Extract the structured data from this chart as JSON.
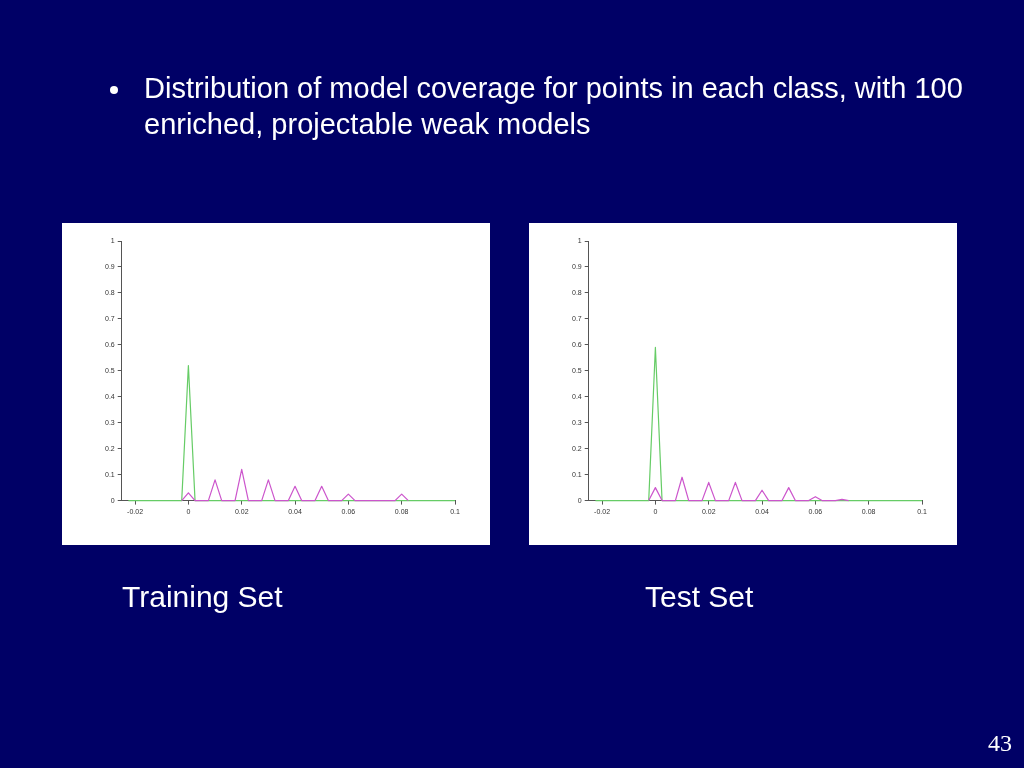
{
  "chart_data": [
    {
      "type": "line",
      "title": "Training Set",
      "annotations": [
        "Distribution of model coverage for points in each class,  with 100 enriched, projectable weak models"
      ],
      "xlim": [
        -0.025,
        0.1
      ],
      "xticks": [
        -0.02,
        0,
        0.02,
        0.04,
        0.06,
        0.08,
        0.1
      ],
      "ylim": [
        0,
        1
      ],
      "yticks": [
        0,
        0.1,
        0.2,
        0.3,
        0.4,
        0.5,
        0.6,
        0.7,
        0.8,
        0.9,
        1
      ],
      "grid": false,
      "legend": false,
      "marker": "none",
      "line_style": "solid",
      "series": [
        {
          "color": "#cc55cc",
          "x": [
            -0.0025,
            0,
            0.0025,
            0.0075,
            0.01,
            0.0125,
            0.0175,
            0.02,
            0.0225,
            0.0275,
            0.03,
            0.0325,
            0.0375,
            0.04,
            0.0425,
            0.0475,
            0.05,
            0.0525,
            0.0575,
            0.06,
            0.0625,
            0.0775,
            0.08,
            0.0825
          ],
          "values": [
            0,
            0.03,
            0,
            0,
            0.08,
            0,
            0,
            0.12,
            0,
            0,
            0.08,
            0,
            0,
            0.055,
            0,
            0,
            0.055,
            0,
            0,
            0.025,
            0,
            0,
            0.025,
            0
          ]
        },
        {
          "color": "#66cc66",
          "x": [
            -0.0225,
            -0.0025,
            0,
            0.0025,
            0.1
          ],
          "values": [
            0,
            0,
            0.52,
            0,
            0
          ]
        }
      ]
    },
    {
      "type": "line",
      "title": "Test Set",
      "annotations": [
        "43"
      ],
      "xlim": [
        -0.025,
        0.1
      ],
      "xticks": [
        -0.02,
        0,
        0.02,
        0.04,
        0.06,
        0.08,
        0.1
      ],
      "ylim": [
        0,
        1
      ],
      "yticks": [
        0,
        0.1,
        0.2,
        0.3,
        0.4,
        0.5,
        0.6,
        0.7,
        0.8,
        0.9,
        1
      ],
      "grid": false,
      "legend": false,
      "marker": "none",
      "line_style": "solid",
      "series": [
        {
          "color": "#cc55cc",
          "x": [
            -0.0025,
            0,
            0.0025,
            0.0075,
            0.01,
            0.0125,
            0.0175,
            0.02,
            0.0225,
            0.0275,
            0.03,
            0.0325,
            0.0375,
            0.04,
            0.0425,
            0.0475,
            0.05,
            0.0525,
            0.0575,
            0.06,
            0.0625,
            0.0675,
            0.07,
            0.0725
          ],
          "values": [
            0,
            0.05,
            0,
            0,
            0.09,
            0,
            0,
            0.07,
            0,
            0,
            0.07,
            0,
            0,
            0.04,
            0,
            0,
            0.05,
            0,
            0,
            0.015,
            0,
            0,
            0.005,
            0
          ]
        },
        {
          "color": "#66cc66",
          "x": [
            -0.0225,
            -0.0025,
            0,
            0.0025,
            0.1
          ],
          "values": [
            0,
            0,
            0.59,
            0,
            0
          ]
        }
      ]
    }
  ]
}
